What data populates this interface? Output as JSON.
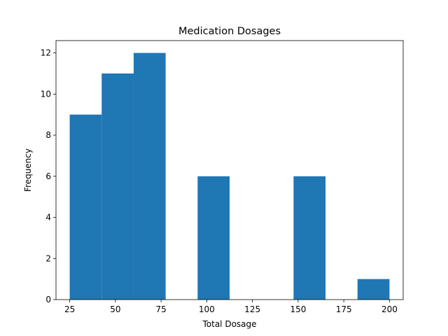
{
  "chart_data": {
    "type": "histogram",
    "title": "Medication Dosages",
    "xlabel": "Total Dosage",
    "ylabel": "Frequency",
    "xlim": [
      17.5,
      207.5
    ],
    "ylim": [
      0,
      12.6
    ],
    "x_ticks": [
      25,
      50,
      75,
      100,
      125,
      150,
      175,
      200
    ],
    "y_ticks": [
      0,
      2,
      4,
      6,
      8,
      10,
      12
    ],
    "bins": [
      {
        "x0": 25.0,
        "x1": 42.5,
        "count": 9
      },
      {
        "x0": 42.5,
        "x1": 60.0,
        "count": 11
      },
      {
        "x0": 60.0,
        "x1": 77.5,
        "count": 12
      },
      {
        "x0": 77.5,
        "x1": 95.0,
        "count": 0
      },
      {
        "x0": 95.0,
        "x1": 112.5,
        "count": 6
      },
      {
        "x0": 112.5,
        "x1": 130.0,
        "count": 0
      },
      {
        "x0": 130.0,
        "x1": 147.5,
        "count": 0
      },
      {
        "x0": 147.5,
        "x1": 165.0,
        "count": 6
      },
      {
        "x0": 165.0,
        "x1": 182.5,
        "count": 0
      },
      {
        "x0": 182.5,
        "x1": 200.0,
        "count": 1
      }
    ],
    "bar_color": "#1f77b4",
    "grid": false,
    "legend": "none"
  }
}
